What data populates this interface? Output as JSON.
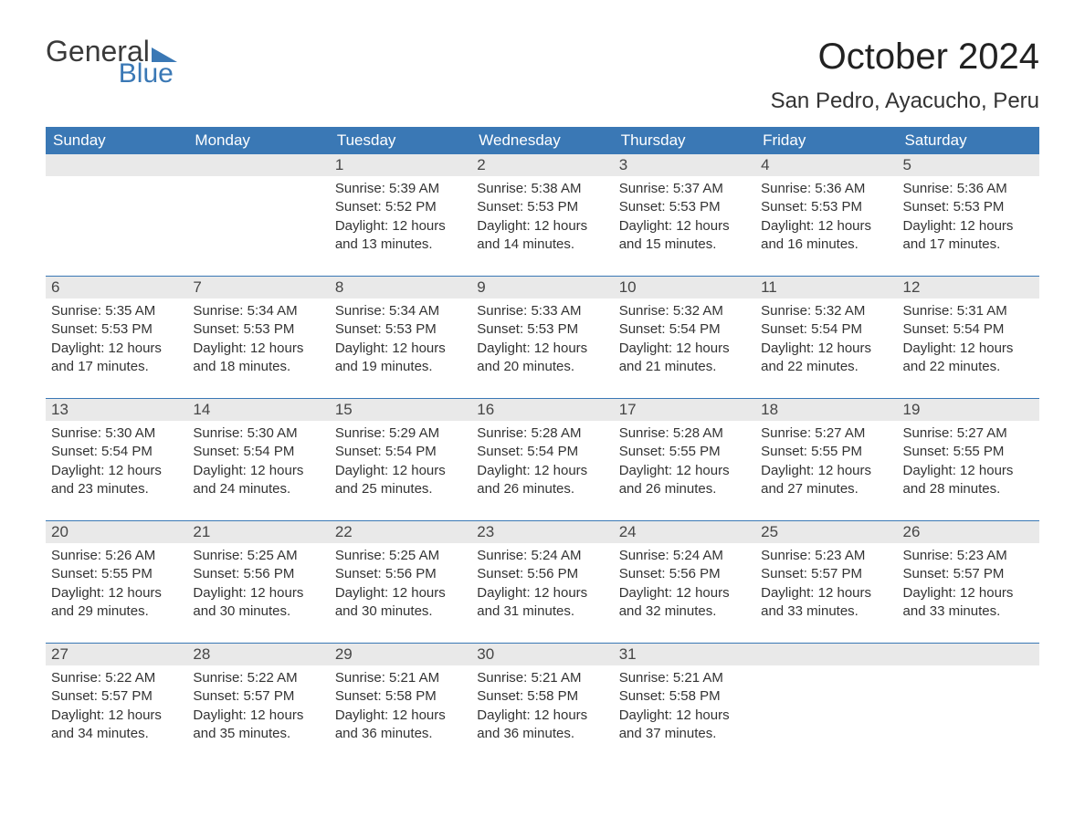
{
  "logo": {
    "word1": "General",
    "word2": "Blue",
    "triangle_color": "#3a78b5"
  },
  "title": "October 2024",
  "location": "San Pedro, Ayacucho, Peru",
  "title_fontsize": 40,
  "location_fontsize": 24,
  "header_bg": "#3a78b5",
  "header_text_color": "#ffffff",
  "daynum_bg": "#e9e9e9",
  "row_border_color": "#3a78b5",
  "body_text_color": "#333333",
  "content_fontsize": 15,
  "weekdays": [
    "Sunday",
    "Monday",
    "Tuesday",
    "Wednesday",
    "Thursday",
    "Friday",
    "Saturday"
  ],
  "weeks": [
    [
      {
        "n": "",
        "l1": "",
        "l2": "",
        "l3": "",
        "l4": ""
      },
      {
        "n": "",
        "l1": "",
        "l2": "",
        "l3": "",
        "l4": ""
      },
      {
        "n": "1",
        "l1": "Sunrise: 5:39 AM",
        "l2": "Sunset: 5:52 PM",
        "l3": "Daylight: 12 hours",
        "l4": "and 13 minutes."
      },
      {
        "n": "2",
        "l1": "Sunrise: 5:38 AM",
        "l2": "Sunset: 5:53 PM",
        "l3": "Daylight: 12 hours",
        "l4": "and 14 minutes."
      },
      {
        "n": "3",
        "l1": "Sunrise: 5:37 AM",
        "l2": "Sunset: 5:53 PM",
        "l3": "Daylight: 12 hours",
        "l4": "and 15 minutes."
      },
      {
        "n": "4",
        "l1": "Sunrise: 5:36 AM",
        "l2": "Sunset: 5:53 PM",
        "l3": "Daylight: 12 hours",
        "l4": "and 16 minutes."
      },
      {
        "n": "5",
        "l1": "Sunrise: 5:36 AM",
        "l2": "Sunset: 5:53 PM",
        "l3": "Daylight: 12 hours",
        "l4": "and 17 minutes."
      }
    ],
    [
      {
        "n": "6",
        "l1": "Sunrise: 5:35 AM",
        "l2": "Sunset: 5:53 PM",
        "l3": "Daylight: 12 hours",
        "l4": "and 17 minutes."
      },
      {
        "n": "7",
        "l1": "Sunrise: 5:34 AM",
        "l2": "Sunset: 5:53 PM",
        "l3": "Daylight: 12 hours",
        "l4": "and 18 minutes."
      },
      {
        "n": "8",
        "l1": "Sunrise: 5:34 AM",
        "l2": "Sunset: 5:53 PM",
        "l3": "Daylight: 12 hours",
        "l4": "and 19 minutes."
      },
      {
        "n": "9",
        "l1": "Sunrise: 5:33 AM",
        "l2": "Sunset: 5:53 PM",
        "l3": "Daylight: 12 hours",
        "l4": "and 20 minutes."
      },
      {
        "n": "10",
        "l1": "Sunrise: 5:32 AM",
        "l2": "Sunset: 5:54 PM",
        "l3": "Daylight: 12 hours",
        "l4": "and 21 minutes."
      },
      {
        "n": "11",
        "l1": "Sunrise: 5:32 AM",
        "l2": "Sunset: 5:54 PM",
        "l3": "Daylight: 12 hours",
        "l4": "and 22 minutes."
      },
      {
        "n": "12",
        "l1": "Sunrise: 5:31 AM",
        "l2": "Sunset: 5:54 PM",
        "l3": "Daylight: 12 hours",
        "l4": "and 22 minutes."
      }
    ],
    [
      {
        "n": "13",
        "l1": "Sunrise: 5:30 AM",
        "l2": "Sunset: 5:54 PM",
        "l3": "Daylight: 12 hours",
        "l4": "and 23 minutes."
      },
      {
        "n": "14",
        "l1": "Sunrise: 5:30 AM",
        "l2": "Sunset: 5:54 PM",
        "l3": "Daylight: 12 hours",
        "l4": "and 24 minutes."
      },
      {
        "n": "15",
        "l1": "Sunrise: 5:29 AM",
        "l2": "Sunset: 5:54 PM",
        "l3": "Daylight: 12 hours",
        "l4": "and 25 minutes."
      },
      {
        "n": "16",
        "l1": "Sunrise: 5:28 AM",
        "l2": "Sunset: 5:54 PM",
        "l3": "Daylight: 12 hours",
        "l4": "and 26 minutes."
      },
      {
        "n": "17",
        "l1": "Sunrise: 5:28 AM",
        "l2": "Sunset: 5:55 PM",
        "l3": "Daylight: 12 hours",
        "l4": "and 26 minutes."
      },
      {
        "n": "18",
        "l1": "Sunrise: 5:27 AM",
        "l2": "Sunset: 5:55 PM",
        "l3": "Daylight: 12 hours",
        "l4": "and 27 minutes."
      },
      {
        "n": "19",
        "l1": "Sunrise: 5:27 AM",
        "l2": "Sunset: 5:55 PM",
        "l3": "Daylight: 12 hours",
        "l4": "and 28 minutes."
      }
    ],
    [
      {
        "n": "20",
        "l1": "Sunrise: 5:26 AM",
        "l2": "Sunset: 5:55 PM",
        "l3": "Daylight: 12 hours",
        "l4": "and 29 minutes."
      },
      {
        "n": "21",
        "l1": "Sunrise: 5:25 AM",
        "l2": "Sunset: 5:56 PM",
        "l3": "Daylight: 12 hours",
        "l4": "and 30 minutes."
      },
      {
        "n": "22",
        "l1": "Sunrise: 5:25 AM",
        "l2": "Sunset: 5:56 PM",
        "l3": "Daylight: 12 hours",
        "l4": "and 30 minutes."
      },
      {
        "n": "23",
        "l1": "Sunrise: 5:24 AM",
        "l2": "Sunset: 5:56 PM",
        "l3": "Daylight: 12 hours",
        "l4": "and 31 minutes."
      },
      {
        "n": "24",
        "l1": "Sunrise: 5:24 AM",
        "l2": "Sunset: 5:56 PM",
        "l3": "Daylight: 12 hours",
        "l4": "and 32 minutes."
      },
      {
        "n": "25",
        "l1": "Sunrise: 5:23 AM",
        "l2": "Sunset: 5:57 PM",
        "l3": "Daylight: 12 hours",
        "l4": "and 33 minutes."
      },
      {
        "n": "26",
        "l1": "Sunrise: 5:23 AM",
        "l2": "Sunset: 5:57 PM",
        "l3": "Daylight: 12 hours",
        "l4": "and 33 minutes."
      }
    ],
    [
      {
        "n": "27",
        "l1": "Sunrise: 5:22 AM",
        "l2": "Sunset: 5:57 PM",
        "l3": "Daylight: 12 hours",
        "l4": "and 34 minutes."
      },
      {
        "n": "28",
        "l1": "Sunrise: 5:22 AM",
        "l2": "Sunset: 5:57 PM",
        "l3": "Daylight: 12 hours",
        "l4": "and 35 minutes."
      },
      {
        "n": "29",
        "l1": "Sunrise: 5:21 AM",
        "l2": "Sunset: 5:58 PM",
        "l3": "Daylight: 12 hours",
        "l4": "and 36 minutes."
      },
      {
        "n": "30",
        "l1": "Sunrise: 5:21 AM",
        "l2": "Sunset: 5:58 PM",
        "l3": "Daylight: 12 hours",
        "l4": "and 36 minutes."
      },
      {
        "n": "31",
        "l1": "Sunrise: 5:21 AM",
        "l2": "Sunset: 5:58 PM",
        "l3": "Daylight: 12 hours",
        "l4": "and 37 minutes."
      },
      {
        "n": "",
        "l1": "",
        "l2": "",
        "l3": "",
        "l4": ""
      },
      {
        "n": "",
        "l1": "",
        "l2": "",
        "l3": "",
        "l4": ""
      }
    ]
  ]
}
